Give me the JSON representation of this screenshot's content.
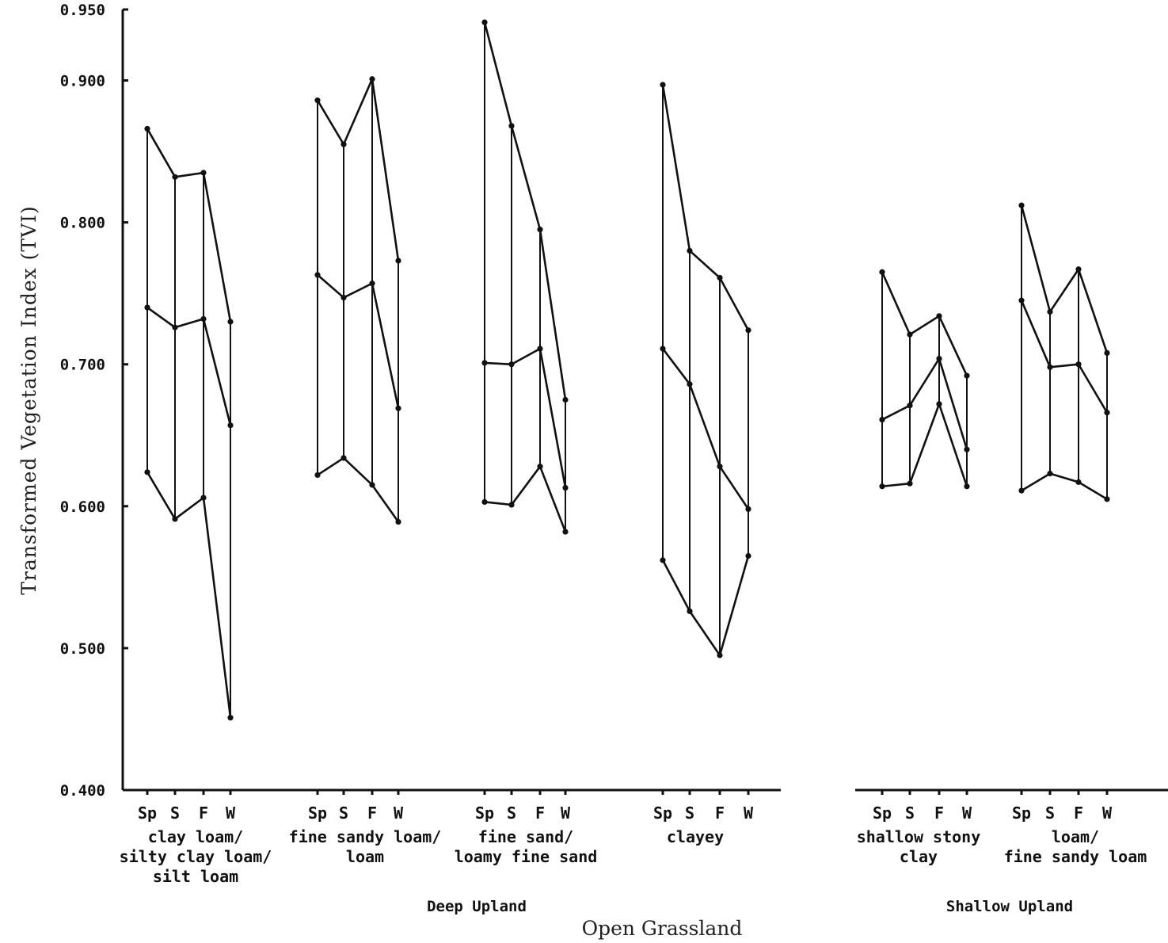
{
  "chart_data": {
    "type": "line",
    "ylabel": "Transformed Vegetation Index (TVI)",
    "footer": "Open Grassland",
    "ylim": [
      0.4,
      0.95
    ],
    "yticks": [
      {
        "value": 0.4,
        "label": "0.400"
      },
      {
        "value": 0.5,
        "label": "0.500"
      },
      {
        "value": 0.6,
        "label": "0.600"
      },
      {
        "value": 0.7,
        "label": "0.700"
      },
      {
        "value": 0.8,
        "label": "0.800"
      },
      {
        "value": 0.9,
        "label": "0.900"
      },
      {
        "value": 0.95,
        "label": "0.950"
      }
    ],
    "grid": false,
    "legend": "none",
    "groups": [
      {
        "id": "deep-upland",
        "label": "Deep Upland"
      },
      {
        "id": "shallow-upland",
        "label": "Shallow Upland"
      }
    ],
    "soils": [
      {
        "group": "deep-upland",
        "label_lines": [
          "clay loam/",
          "silty clay loam/",
          "silt loam"
        ],
        "seasons": [
          "Sp",
          "S",
          "F",
          "W"
        ],
        "max": [
          0.866,
          0.832,
          0.835,
          0.73
        ],
        "mean": [
          0.74,
          0.726,
          0.732,
          0.657
        ],
        "min": [
          0.624,
          0.591,
          0.606,
          0.451
        ]
      },
      {
        "group": "deep-upland",
        "label_lines": [
          "fine sandy loam/",
          "loam"
        ],
        "seasons": [
          "Sp",
          "S",
          "F",
          "W"
        ],
        "max": [
          0.886,
          0.855,
          0.901,
          0.773
        ],
        "mean": [
          0.763,
          0.747,
          0.757,
          0.669
        ],
        "min": [
          0.622,
          0.634,
          0.615,
          0.589
        ]
      },
      {
        "group": "deep-upland",
        "label_lines": [
          "fine sand/",
          "loamy fine sand"
        ],
        "seasons": [
          "Sp",
          "S",
          "F",
          "W"
        ],
        "max": [
          0.941,
          0.868,
          0.795,
          0.675
        ],
        "mean": [
          0.701,
          0.7,
          0.711,
          0.613
        ],
        "min": [
          0.603,
          0.601,
          0.628,
          0.582
        ]
      },
      {
        "group": "deep-upland",
        "label_lines": [
          "clayey"
        ],
        "seasons": [
          "Sp",
          "S",
          "F",
          "W"
        ],
        "max": [
          0.897,
          0.78,
          0.761,
          0.724
        ],
        "mean": [
          0.711,
          0.686,
          0.628,
          0.598
        ],
        "min": [
          0.562,
          0.526,
          0.495,
          0.565
        ]
      },
      {
        "group": "shallow-upland",
        "label_lines": [
          "shallow stony",
          "clay"
        ],
        "seasons": [
          "Sp",
          "S",
          "F",
          "W"
        ],
        "max": [
          0.765,
          0.721,
          0.734,
          0.692
        ],
        "mean": [
          0.661,
          0.671,
          0.704,
          0.64
        ],
        "min": [
          0.614,
          0.616,
          0.672,
          0.614
        ]
      },
      {
        "group": "shallow-upland",
        "label_lines": [
          "loam/",
          "fine sandy loam"
        ],
        "seasons": [
          "Sp",
          "S",
          "F",
          "W"
        ],
        "max": [
          0.812,
          0.737,
          0.767,
          0.708
        ],
        "mean": [
          0.745,
          0.698,
          0.7,
          0.666
        ],
        "min": [
          0.611,
          0.623,
          0.617,
          0.605
        ]
      }
    ]
  }
}
